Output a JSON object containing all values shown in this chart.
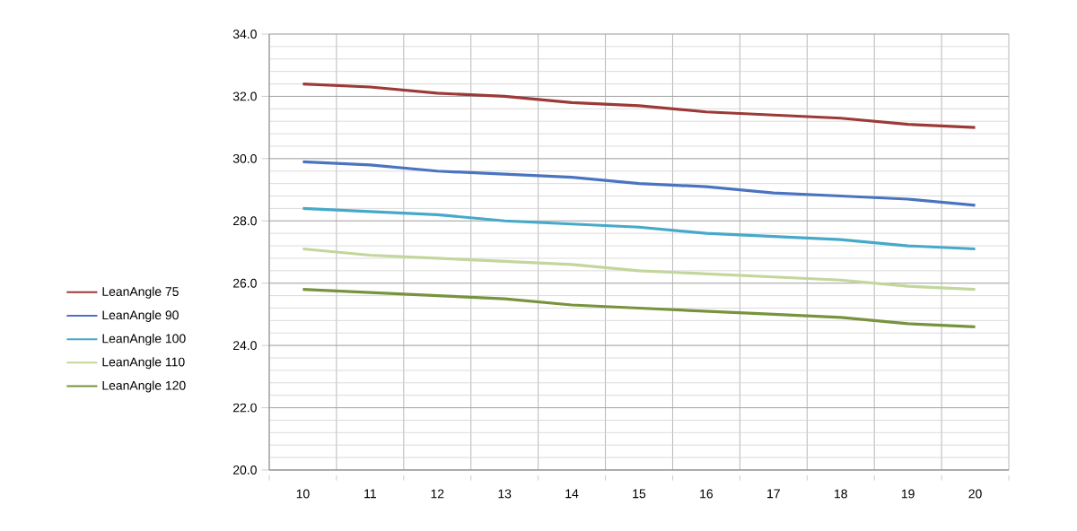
{
  "chart_data": {
    "type": "line",
    "categories": [
      "10",
      "11",
      "12",
      "13",
      "14",
      "15",
      "16",
      "17",
      "18",
      "19",
      "20"
    ],
    "series": [
      {
        "name": "LeanAngle 75",
        "color": "#9b3a37",
        "values": [
          32.4,
          32.3,
          32.1,
          32.0,
          31.8,
          31.7,
          31.5,
          31.4,
          31.3,
          31.1,
          31.0
        ]
      },
      {
        "name": "LeanAngle 90",
        "color": "#4a74c0",
        "values": [
          29.9,
          29.8,
          29.6,
          29.5,
          29.4,
          29.2,
          29.1,
          28.9,
          28.8,
          28.7,
          28.5
        ]
      },
      {
        "name": "LeanAngle 100",
        "color": "#46a9c9",
        "values": [
          28.4,
          28.3,
          28.2,
          28.0,
          27.9,
          27.8,
          27.6,
          27.5,
          27.4,
          27.2,
          27.1
        ]
      },
      {
        "name": "LeanAngle 110",
        "color": "#c3d69b",
        "values": [
          27.1,
          26.9,
          26.8,
          26.7,
          26.6,
          26.4,
          26.3,
          26.2,
          26.1,
          25.9,
          25.8
        ]
      },
      {
        "name": "LeanAngle 120",
        "color": "#77933c",
        "values": [
          25.8,
          25.7,
          25.6,
          25.5,
          25.3,
          25.2,
          25.1,
          25.0,
          24.9,
          24.7,
          24.6
        ]
      }
    ],
    "ylim": [
      20,
      34
    ],
    "yticks": [
      {
        "value": 20,
        "label": "20.0"
      },
      {
        "value": 22,
        "label": "22.0"
      },
      {
        "value": 24,
        "label": "24.0"
      },
      {
        "value": 26,
        "label": "26.0"
      },
      {
        "value": 28,
        "label": "28.0"
      },
      {
        "value": 30,
        "label": "30.0"
      },
      {
        "value": 32,
        "label": "32.0"
      },
      {
        "value": 34,
        "label": "34.0"
      }
    ],
    "grid": true,
    "legend": "left",
    "marker": "none",
    "line_style": "solid"
  }
}
